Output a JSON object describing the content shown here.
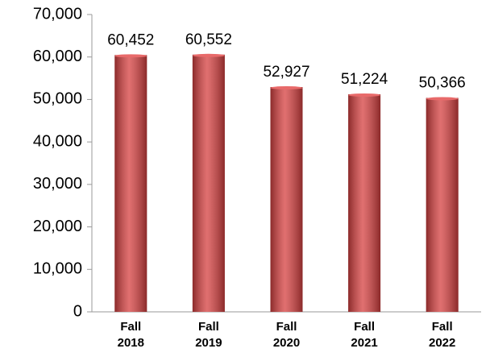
{
  "chart_data": {
    "type": "bar",
    "categories": [
      "Fall 2018",
      "Fall 2019",
      "Fall 2020",
      "Fall 2021",
      "Fall 2022"
    ],
    "values": [
      60452,
      60552,
      52927,
      51224,
      50366
    ],
    "value_labels": [
      "60,452",
      "60,552",
      "52,927",
      "51,224",
      "50,366"
    ],
    "color": "#d64040",
    "ylim": [
      0,
      70000
    ],
    "yticks": [
      0,
      {
        "value": 10000,
        "label": "10,000"
      },
      {
        "value": 20000,
        "label": "20,000"
      },
      {
        "value": 30000,
        "label": "30,000"
      },
      {
        "value": 40000,
        "label": "40,000"
      },
      {
        "value": 50000,
        "label": "50,000"
      },
      {
        "value": 60000,
        "label": "60,000"
      },
      {
        "value": 70000,
        "label": "70,000"
      }
    ],
    "grid": false
  }
}
